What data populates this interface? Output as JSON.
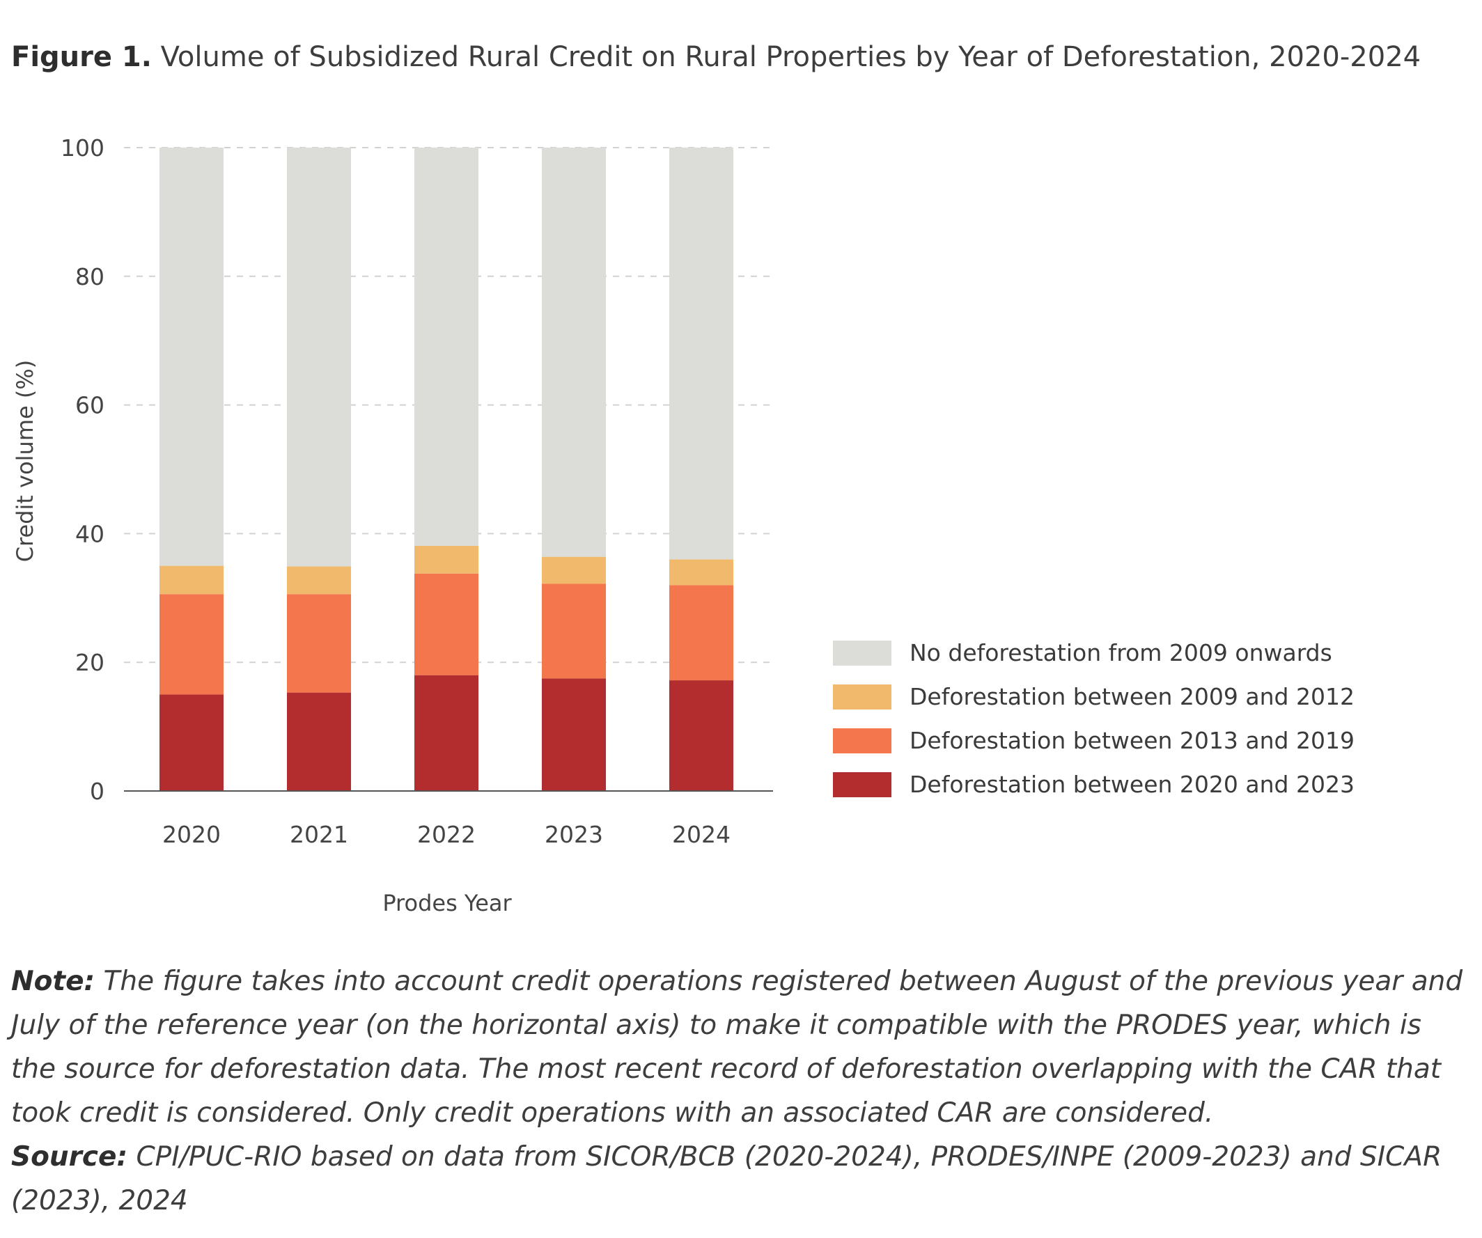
{
  "title": {
    "label": "Figure 1.",
    "text": "Volume of Subsidized Rural Credit on Rural Properties by Year of Deforestation, 2020-2024"
  },
  "chart_data": {
    "type": "bar",
    "stacked": true,
    "categories": [
      "2020",
      "2021",
      "2022",
      "2023",
      "2024"
    ],
    "series": [
      {
        "name": "Deforestation between 2020 and 2023",
        "color": "#b32d2e",
        "values": [
          15.0,
          15.3,
          18.0,
          17.5,
          17.2
        ]
      },
      {
        "name": "Deforestation between 2013 and 2019",
        "color": "#f4764d",
        "values": [
          15.6,
          15.3,
          15.8,
          14.7,
          14.8
        ]
      },
      {
        "name": "Deforestation between 2009 and 2012",
        "color": "#f1b96c",
        "values": [
          4.4,
          4.3,
          4.3,
          4.2,
          4.0
        ]
      },
      {
        "name": "No deforestation from 2009 onwards",
        "color": "#dcddd8",
        "values": [
          65.0,
          65.1,
          61.9,
          63.6,
          64.0
        ]
      }
    ],
    "xlabel": "Prodes Year",
    "ylabel": "Credit volume (%)",
    "ylim": [
      0,
      100
    ],
    "yticks": [
      "0",
      "20",
      "40",
      "60",
      "80",
      "100"
    ],
    "grid": "horizontal dashed",
    "legend_placement": "right",
    "legend_order": [
      "No deforestation from 2009 onwards",
      "Deforestation between 2009 and 2012",
      "Deforestation between 2013 and 2019",
      "Deforestation between 2020 and 2023"
    ]
  },
  "notes": {
    "note_label": "Note:",
    "note_text": " The figure takes into account credit operations registered between August of the previous year and July of the reference year (on the horizontal axis) to make it compatible with the PRODES year, which is the source for deforestation data. The most recent record of deforestation overlapping with the CAR that took credit is considered. Only credit operations with an associated CAR are considered.",
    "source_label": "Source:",
    "source_text": " CPI/PUC-RIO based on data from SICOR/BCB (2020-2024), PRODES/INPE (2009-2023) and SICAR (2023), 2024"
  }
}
